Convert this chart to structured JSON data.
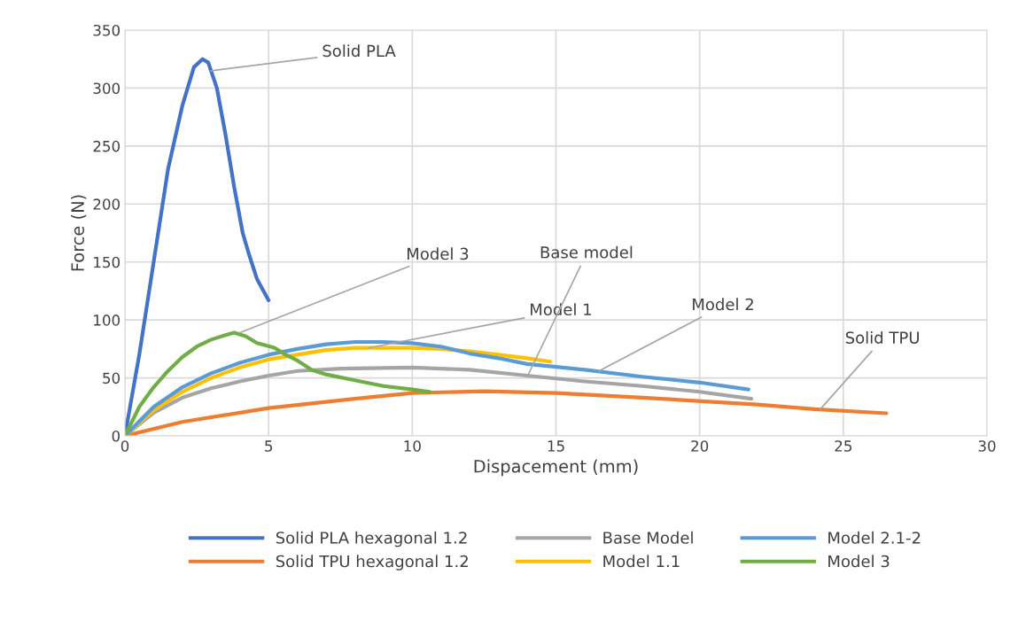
{
  "chart_data": {
    "type": "line",
    "xlabel": "Dispacement (mm)",
    "ylabel": "Force (N)",
    "xlim": [
      0,
      30
    ],
    "ylim": [
      0,
      350
    ],
    "xticks": [
      0,
      5,
      10,
      15,
      20,
      25,
      30
    ],
    "yticks": [
      0,
      50,
      100,
      150,
      200,
      250,
      300,
      350
    ],
    "grid": true,
    "legend": "bottom",
    "marker": "none",
    "line_style": "solid",
    "series": [
      {
        "name": "Solid PLA hexagonal 1.2",
        "color": "#4472c4",
        "x": [
          0,
          0.5,
          1,
          1.5,
          2,
          2.4,
          2.7,
          2.9,
          3.2,
          3.5,
          3.8,
          4.1,
          4.3,
          4.6,
          5.0
        ],
        "values": [
          0,
          70,
          150,
          230,
          285,
          318,
          325,
          322,
          300,
          260,
          215,
          175,
          158,
          135,
          117
        ]
      },
      {
        "name": "Solid TPU hexagonal 1.2",
        "color": "#ed7d31",
        "x": [
          0,
          2,
          5,
          8,
          10,
          12.5,
          15,
          18,
          22,
          24,
          26.5
        ],
        "values": [
          0,
          12,
          24,
          32,
          37,
          38.5,
          37,
          33,
          27,
          23,
          19.5
        ]
      },
      {
        "name": "Base Model",
        "color": "#a5a5a5",
        "x": [
          0,
          1,
          2,
          3,
          4,
          5,
          6,
          7.5,
          10,
          12,
          14,
          16,
          18,
          20,
          21.8
        ],
        "values": [
          0,
          20,
          33,
          41,
          47,
          52,
          56,
          58,
          59,
          57,
          52,
          47,
          43,
          38,
          32
        ]
      },
      {
        "name": "Model 1.1",
        "color": "#ffc000",
        "x": [
          0,
          1,
          2,
          3,
          4,
          5,
          6,
          7,
          8,
          10,
          11,
          12,
          13,
          14,
          14.8
        ],
        "values": [
          0,
          22,
          38,
          50,
          59,
          66,
          70,
          74,
          76,
          76,
          75,
          73,
          70,
          67,
          64
        ]
      },
      {
        "name": "Model 2.1-2",
        "color": "#5b9bd5",
        "x": [
          0,
          1,
          2,
          3,
          4,
          5,
          6,
          7,
          8,
          9,
          10,
          11,
          12,
          13,
          14,
          16,
          18,
          20,
          21.7
        ],
        "values": [
          0,
          25,
          42,
          54,
          63,
          70,
          75,
          79,
          81,
          81,
          80,
          77,
          71,
          67,
          62,
          57,
          51,
          46,
          40
        ]
      },
      {
        "name": "Model 3",
        "color": "#70ad47",
        "x": [
          0,
          0.5,
          1,
          1.5,
          2,
          2.5,
          3,
          3.5,
          3.8,
          4.2,
          4.6,
          5.2,
          5.6,
          6,
          6.5,
          7,
          8,
          9,
          10,
          10.6
        ],
        "values": [
          0,
          25,
          42,
          56,
          68,
          77,
          83,
          87,
          89,
          86,
          80,
          76,
          70,
          65,
          57,
          53,
          48,
          43,
          40,
          38
        ]
      }
    ],
    "annotations": [
      {
        "text": "Solid PLA",
        "x": 3.0,
        "y": 315
      },
      {
        "text": "Model 3",
        "x": 4.0,
        "y": 89
      },
      {
        "text": "Model 1",
        "x": 8.5,
        "y": 76
      },
      {
        "text": "Base model",
        "x": 14,
        "y": 51
      },
      {
        "text": "Model 2",
        "x": 16.5,
        "y": 56
      },
      {
        "text": "Solid TPU",
        "x": 24.2,
        "y": 23
      }
    ]
  }
}
